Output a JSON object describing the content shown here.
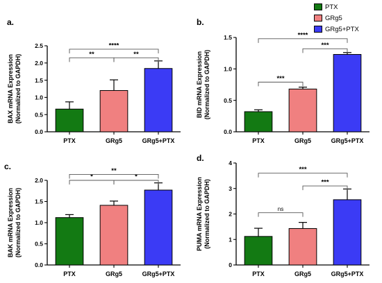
{
  "legend": [
    {
      "label": "PTX",
      "color": "#137a13"
    },
    {
      "label": "GRg5",
      "color": "#f08080"
    },
    {
      "label": "GRg5+PTX",
      "color": "#3b3bf5"
    }
  ],
  "chart_data": [
    {
      "type": "bar",
      "panel_label": "a.",
      "categories": [
        "PTX",
        "GRg5",
        "GRg5+PTX"
      ],
      "values": [
        0.66,
        1.2,
        1.84
      ],
      "errors": [
        0.21,
        0.31,
        0.22
      ],
      "ylabel_lines": [
        "BAX mRNA Expression",
        "(Normalized to GAPDH)"
      ],
      "ylim": [
        0,
        2.5
      ],
      "yticks": [
        0.0,
        0.5,
        1.0,
        1.5,
        2.0,
        2.5
      ],
      "ytick_labels": [
        "0.0",
        "0.5",
        "1.0",
        "1.5",
        "2.0",
        "2.5"
      ],
      "colors": [
        "#137a13",
        "#f08080",
        "#3b3bf5"
      ],
      "brackets": [
        {
          "from": 0,
          "to": 1,
          "label": "**",
          "y": 2.15
        },
        {
          "from": 1,
          "to": 2,
          "label": "**",
          "y": 2.15
        },
        {
          "from": 0,
          "to": 2,
          "label": "****",
          "y": 2.4
        }
      ]
    },
    {
      "type": "bar",
      "panel_label": "b.",
      "categories": [
        "PTX",
        "GRg5",
        "GRg5+PTX"
      ],
      "values": [
        0.32,
        0.68,
        1.23
      ],
      "errors": [
        0.03,
        0.03,
        0.03
      ],
      "ylabel_lines": [
        "BID mRNA Expression",
        "(Normalized to GAPDH)"
      ],
      "ylim": [
        0,
        1.5
      ],
      "yticks": [
        0.0,
        0.5,
        1.0,
        1.5
      ],
      "ytick_labels": [
        "0.0",
        "0.5",
        "1.0",
        "1.5"
      ],
      "colors": [
        "#137a13",
        "#f08080",
        "#3b3bf5"
      ],
      "brackets": [
        {
          "from": 0,
          "to": 1,
          "label": "***",
          "y": 0.79
        },
        {
          "from": 1,
          "to": 2,
          "label": "***",
          "y": 1.32
        },
        {
          "from": 0,
          "to": 2,
          "label": "****",
          "y": 1.48
        }
      ]
    },
    {
      "type": "bar",
      "panel_label": "c.",
      "categories": [
        "PTX",
        "GRg5",
        "GRg5+PTX"
      ],
      "values": [
        1.12,
        1.41,
        1.77
      ],
      "errors": [
        0.07,
        0.1,
        0.17
      ],
      "ylabel_lines": [
        "BAK mRNA Expression",
        "(Normalized to GAPDH)"
      ],
      "ylim": [
        0,
        2.0
      ],
      "yticks": [
        0.0,
        0.5,
        1.0,
        1.5,
        2.0
      ],
      "ytick_labels": [
        "0.0",
        "0.5",
        "1.0",
        "1.5",
        "2.0"
      ],
      "colors": [
        "#137a13",
        "#f08080",
        "#3b3bf5"
      ],
      "brackets": [
        {
          "from": 0,
          "to": 1,
          "label": "*",
          "y": 2.0
        },
        {
          "from": 1,
          "to": 2,
          "label": "*",
          "y": 2.0
        },
        {
          "from": 0,
          "to": 2,
          "label": "**",
          "y": 2.14
        }
      ]
    },
    {
      "type": "bar",
      "panel_label": "d.",
      "categories": [
        "PTX",
        "GRg5",
        "GRg5+PTX"
      ],
      "values": [
        1.12,
        1.43,
        2.56
      ],
      "errors": [
        0.32,
        0.24,
        0.42
      ],
      "ylabel_lines": [
        "PUMA mRNA Expression",
        "(Normalized to GAPDH)"
      ],
      "ylim": [
        0,
        4
      ],
      "yticks": [
        0,
        1,
        2,
        3,
        4
      ],
      "ytick_labels": [
        "0",
        "1",
        "2",
        "3",
        "4"
      ],
      "colors": [
        "#137a13",
        "#f08080",
        "#3b3bf5"
      ],
      "brackets": [
        {
          "from": 0,
          "to": 1,
          "label": "ns",
          "y": 2.05
        },
        {
          "from": 1,
          "to": 2,
          "label": "***",
          "y": 3.1
        },
        {
          "from": 0,
          "to": 2,
          "label": "***",
          "y": 3.6
        }
      ]
    }
  ]
}
